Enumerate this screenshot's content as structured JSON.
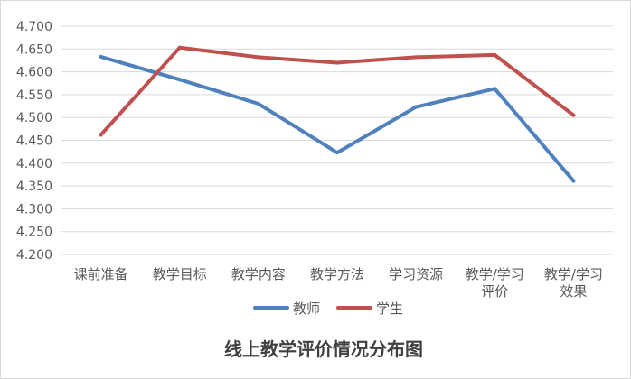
{
  "chart_data": {
    "type": "line",
    "title": "线上教学评价情况分布图",
    "xlabel": "",
    "ylabel": "",
    "ylim": [
      4.2,
      4.7
    ],
    "ytick_step": 0.05,
    "yticks": [
      "4.200",
      "4.250",
      "4.300",
      "4.350",
      "4.400",
      "4.450",
      "4.500",
      "4.550",
      "4.600",
      "4.650",
      "4.700"
    ],
    "categories": [
      "课前准备",
      "教学目标",
      "教学内容",
      "教学方法",
      "学习资源",
      "教学/学习评价",
      "教学/学习效果"
    ],
    "category_lines": [
      [
        "课前准备"
      ],
      [
        "教学目标"
      ],
      [
        "教学内容"
      ],
      [
        "教学方法"
      ],
      [
        "学习资源"
      ],
      [
        "教学/学习",
        "评价"
      ],
      [
        "教学/学习",
        "效果"
      ]
    ],
    "series": [
      {
        "name": "教师",
        "color": "#4f81bd",
        "values": [
          4.633,
          4.583,
          4.53,
          4.423,
          4.523,
          4.563,
          4.361
        ]
      },
      {
        "name": "学生",
        "color": "#c0504d",
        "values": [
          4.462,
          4.653,
          4.632,
          4.62,
          4.632,
          4.637,
          4.505
        ]
      }
    ],
    "grid": true,
    "legend_position": "bottom"
  }
}
